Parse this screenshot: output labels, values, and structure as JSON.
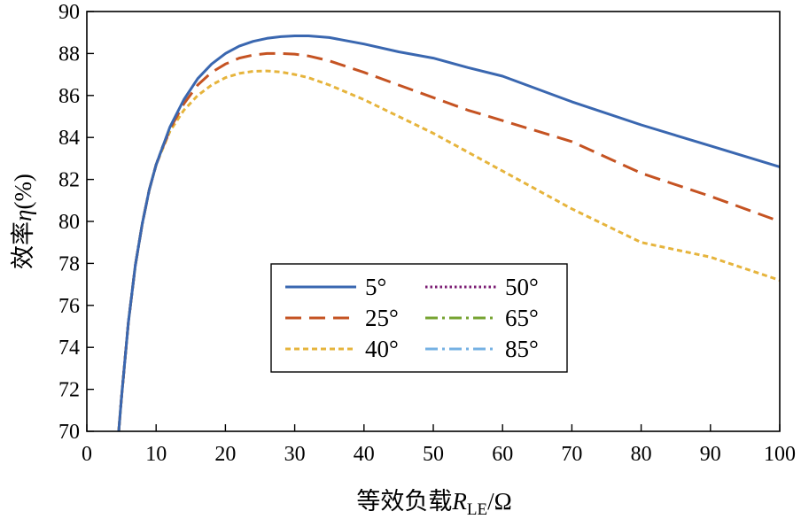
{
  "chart_data": {
    "type": "line",
    "xlabel": {
      "prefix": "等效负载",
      "symbol": "R",
      "subscript": "LE",
      "suffix": "/Ω"
    },
    "ylabel": {
      "prefix": "效率",
      "symbol": "η",
      "suffix": "(%)"
    },
    "xlim": [
      0,
      100
    ],
    "ylim": [
      70,
      90
    ],
    "xticks": [
      "0",
      "10",
      "20",
      "30",
      "40",
      "50",
      "60",
      "70",
      "80",
      "90",
      "100"
    ],
    "yticks": [
      "70",
      "72",
      "74",
      "76",
      "78",
      "80",
      "82",
      "84",
      "86",
      "88",
      "90"
    ],
    "grid": false,
    "legend_position": "center-left",
    "series": [
      {
        "name": "5°",
        "color": "#3a67b0",
        "style": "solid",
        "x": [
          4.6,
          5,
          6,
          7,
          8,
          9,
          10,
          12,
          14,
          16,
          18,
          20,
          22,
          24,
          26,
          28,
          30,
          32,
          35,
          40,
          45,
          50,
          55,
          60,
          70,
          80,
          90,
          100
        ],
        "y": [
          70.0,
          71.6,
          75.2,
          77.9,
          79.9,
          81.5,
          82.7,
          84.5,
          85.8,
          86.8,
          87.5,
          88.0,
          88.35,
          88.58,
          88.72,
          88.8,
          88.84,
          88.84,
          88.76,
          88.45,
          88.08,
          87.78,
          87.33,
          86.92,
          85.7,
          84.6,
          83.6,
          82.6
        ]
      },
      {
        "name": "25°",
        "color": "#c55322",
        "style": "dashed",
        "x": [
          4.6,
          5,
          6,
          7,
          8,
          9,
          10,
          12,
          14,
          16,
          18,
          20,
          22,
          24,
          26,
          28,
          30,
          32,
          35,
          40,
          45,
          50,
          55,
          60,
          70,
          80,
          90,
          100
        ],
        "y": [
          70.0,
          71.6,
          75.2,
          77.9,
          79.9,
          81.5,
          82.7,
          84.4,
          85.6,
          86.5,
          87.1,
          87.5,
          87.78,
          87.93,
          88.0,
          88.0,
          87.97,
          87.88,
          87.65,
          87.1,
          86.5,
          85.9,
          85.3,
          84.8,
          83.8,
          82.3,
          81.2,
          80.0
        ]
      },
      {
        "name": "40°",
        "color": "#e6b43c",
        "style": "dotted",
        "x": [
          4.6,
          5,
          6,
          7,
          8,
          9,
          10,
          12,
          14,
          16,
          18,
          20,
          22,
          24,
          26,
          28,
          30,
          32,
          35,
          40,
          45,
          50,
          55,
          60,
          70,
          80,
          90,
          100
        ],
        "y": [
          70.0,
          71.6,
          75.2,
          77.9,
          79.9,
          81.5,
          82.7,
          84.3,
          85.3,
          86.0,
          86.5,
          86.85,
          87.05,
          87.15,
          87.17,
          87.12,
          87.0,
          86.85,
          86.5,
          85.8,
          85.0,
          84.2,
          83.3,
          82.4,
          80.6,
          79.0,
          78.3,
          77.2
        ]
      },
      {
        "name": "50°",
        "color": "#7b1c73",
        "style": "fine-dotted",
        "x": [
          4.6,
          5,
          6,
          7,
          8,
          9,
          10,
          11,
          12
        ],
        "y": [
          70.0,
          71.6,
          75.2,
          77.9,
          79.9,
          81.5,
          82.7,
          83.6,
          84.3
        ]
      },
      {
        "name": "65°",
        "color": "#76a331",
        "style": "dash-dot",
        "x": [
          4.6,
          5,
          6,
          7,
          8,
          9,
          10,
          11,
          12
        ],
        "y": [
          70.0,
          71.6,
          75.2,
          77.9,
          79.9,
          81.5,
          82.7,
          83.6,
          84.3
        ]
      },
      {
        "name": "85°",
        "color": "#75b1e3",
        "style": "dash-dot",
        "x": [
          4.6,
          5,
          6,
          7,
          8,
          9,
          10,
          11,
          12
        ],
        "y": [
          70.0,
          71.6,
          75.2,
          77.9,
          79.9,
          81.5,
          82.7,
          83.6,
          84.3
        ]
      }
    ]
  }
}
